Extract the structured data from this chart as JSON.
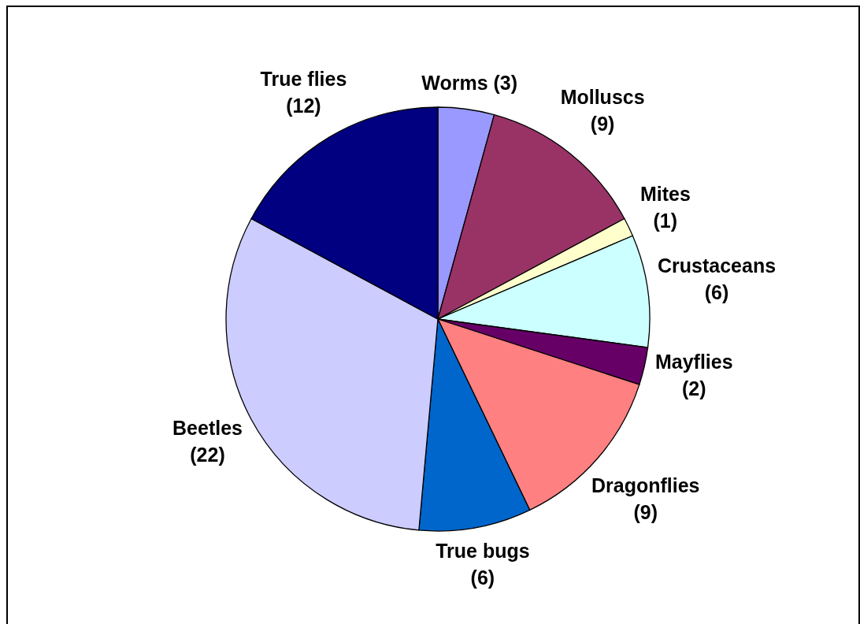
{
  "chart_data": {
    "type": "pie",
    "categories": [
      "Worms",
      "Molluscs",
      "Mites",
      "Crustaceans",
      "Mayflies",
      "Dragonflies",
      "True bugs",
      "Beetles",
      "True flies"
    ],
    "values": [
      3,
      9,
      1,
      6,
      2,
      9,
      6,
      22,
      12
    ],
    "colors": [
      "#9999ff",
      "#993366",
      "#ffffcc",
      "#ccffff",
      "#660066",
      "#ff8080",
      "#0066cc",
      "#ccccff",
      "#000080"
    ],
    "value_labels": [
      "(3)",
      "(9)",
      "(1)",
      "(6)",
      "(2)",
      "(9)",
      "(6)",
      "(22)",
      "(12)"
    ],
    "legend": false
  }
}
